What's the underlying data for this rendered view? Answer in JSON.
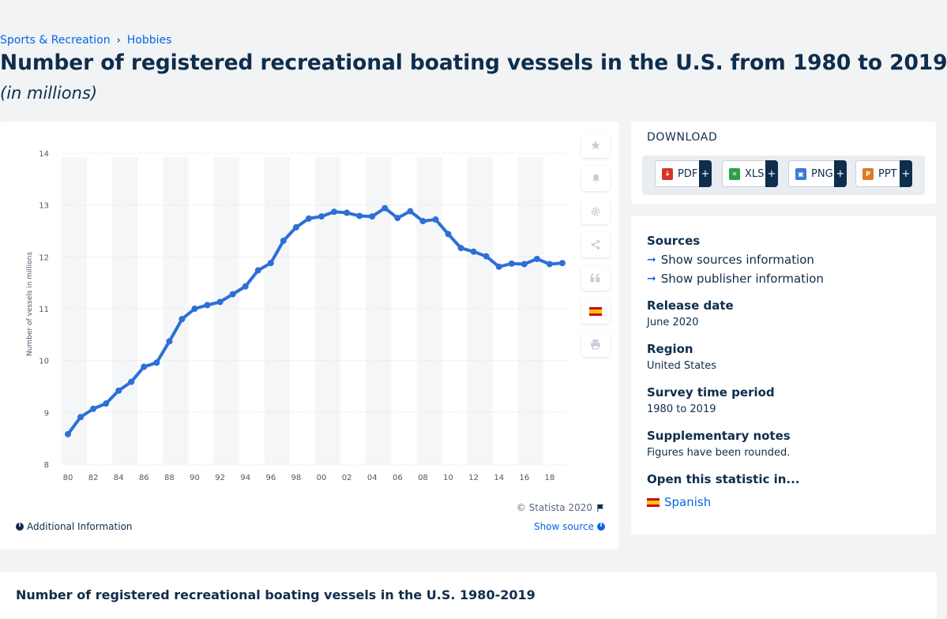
{
  "breadcrumb": {
    "items": [
      "Sports & Recreation",
      "Hobbies"
    ]
  },
  "page": {
    "title": "Number of registered recreational boating vessels in the U.S. from 1980 to 2019",
    "subtitle": "(in millions)"
  },
  "chart_data": {
    "type": "line",
    "title": "",
    "xlabel": "",
    "ylabel": "Number of vessels in millions",
    "ylim": [
      8,
      14
    ],
    "yticks": [
      8,
      9,
      10,
      11,
      12,
      13,
      14
    ],
    "x": [
      1980,
      1981,
      1982,
      1983,
      1984,
      1985,
      1986,
      1987,
      1988,
      1989,
      1990,
      1991,
      1992,
      1993,
      1994,
      1995,
      1996,
      1997,
      1998,
      1999,
      2000,
      2001,
      2002,
      2003,
      2004,
      2005,
      2006,
      2007,
      2008,
      2009,
      2010,
      2011,
      2012,
      2013,
      2014,
      2015,
      2016,
      2017,
      2018,
      2019
    ],
    "xtick_labels": [
      "80",
      "82",
      "84",
      "86",
      "88",
      "90",
      "92",
      "94",
      "96",
      "98",
      "00",
      "02",
      "04",
      "06",
      "08",
      "10",
      "12",
      "14",
      "16",
      "18"
    ],
    "series": [
      {
        "values": [
          8.58,
          8.91,
          9.07,
          9.17,
          9.42,
          9.59,
          9.88,
          9.96,
          10.37,
          10.8,
          11.0,
          11.07,
          11.13,
          11.28,
          11.43,
          11.74,
          11.88,
          12.31,
          12.57,
          12.74,
          12.78,
          12.87,
          12.85,
          12.79,
          12.78,
          12.94,
          12.75,
          12.88,
          12.69,
          12.72,
          12.44,
          12.17,
          12.1,
          12.01,
          11.81,
          11.87,
          11.86,
          11.96,
          11.86,
          11.88
        ]
      }
    ],
    "line_color": "#2d6fd6",
    "grid": "alternating vertical bands"
  },
  "chart": {
    "copyright": "© Statista 2020",
    "additional_info": "Additional Information",
    "show_source": "Show source"
  },
  "toolbar": {
    "icons": [
      "star-icon",
      "bell-icon",
      "gear-icon",
      "share-icon",
      "quote-icon",
      "flag-icon",
      "print-icon"
    ]
  },
  "download": {
    "title": "DOWNLOAD",
    "buttons": [
      {
        "label": "PDF",
        "icon_color": "#d9342b"
      },
      {
        "label": "XLS",
        "icon_color": "#2e9f4a"
      },
      {
        "label": "PNG",
        "icon_color": "#3a7bd5"
      },
      {
        "label": "PPT",
        "icon_color": "#e07a22"
      }
    ],
    "plus": "+"
  },
  "info": {
    "sources_label": "Sources",
    "show_sources": "Show sources information",
    "show_publisher": "Show publisher information",
    "release_label": "Release date",
    "release_value": "June 2020",
    "region_label": "Region",
    "region_value": "United States",
    "survey_label": "Survey time period",
    "survey_value": "1980 to 2019",
    "notes_label": "Supplementary notes",
    "notes_value": "Figures have been rounded.",
    "open_label": "Open this statistic in...",
    "spanish": "Spanish"
  },
  "bottom": {
    "title": "Number of registered recreational boating vessels in the U.S. 1980-2019"
  }
}
